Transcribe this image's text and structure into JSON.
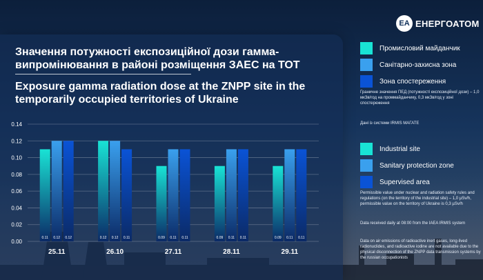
{
  "brand": {
    "badge": "EA",
    "name": "ЕНЕРГОАТОМ"
  },
  "titles": {
    "ua": "Значення потужності експозиційної дози гамма-випромінювання в районі розміщення ЗАЕС на ТОТ",
    "en": "Exposure gamma radiation dose at the ZNPP site in the temporarily occupied territories of Ukraine"
  },
  "legend_ua": [
    {
      "label": "Промисловий майданчик",
      "color": "#19e3d5"
    },
    {
      "label": "Санітарно-захисна зона",
      "color": "#3aa0ee"
    },
    {
      "label": "Зона спостереження",
      "color": "#0a53d6"
    }
  ],
  "legend_en": [
    {
      "label": "Industrial site",
      "color": "#19e3d5"
    },
    {
      "label": "Sanitary protection zone",
      "color": "#3aa0ee"
    },
    {
      "label": "Supervised area",
      "color": "#0a53d6"
    }
  ],
  "notes_ua": [
    "Граничне значення ПЕД (потужності експозиційної дози) – 1,0 мкЗв/год на проммайданчику, 0,3 мкЗв/год у зоні спостереження",
    "Дані із системи IRMIS МАГАТЕ"
  ],
  "notes_en": [
    "Permissible value under nuclear and radiation safety rules and regulations (on the territory of the industrial site) – 1,0 µSv/h, permissible value on the territory of Ukraine is 0,3 µSv/h",
    "Data received daily at 08:00 from the IAEA IRMIS system",
    "Data on air emissions of radioactive inert gases, long-lived radionuclides, and radioactive iodine are not available due to the physical disconnection of the ZNPP data transmission systems by the russian occupationists"
  ],
  "chart_data": {
    "type": "bar",
    "title": "Exposure gamma radiation dose at the ZNPP site in the temporarily occupied territories of Ukraine",
    "xlabel": "",
    "ylabel": "",
    "ylim": [
      0,
      0.14
    ],
    "yticks": [
      "0.00",
      "0.02",
      "0.04",
      "0.06",
      "0.08",
      "0.10",
      "0.12",
      "0.14"
    ],
    "grid": true,
    "categories": [
      "25.11",
      "26.10",
      "27.11",
      "28.11",
      "29.11"
    ],
    "series": [
      {
        "name": "Industrial site",
        "color": "#19e3d5",
        "values": [
          0.11,
          0.12,
          0.09,
          0.09,
          0.09
        ],
        "labels": [
          "0.11",
          "0.12",
          "0.09",
          "0.09",
          "0.09"
        ]
      },
      {
        "name": "Sanitary protection zone",
        "color": "#3aa0ee",
        "values": [
          0.12,
          0.12,
          0.11,
          0.11,
          0.11
        ],
        "labels": [
          "0.12",
          "0.12",
          "0.11",
          "0.11",
          "0.11"
        ]
      },
      {
        "name": "Supervised area",
        "color": "#0a53d6",
        "values": [
          0.12,
          0.11,
          0.11,
          0.11,
          0.11
        ],
        "labels": [
          "0.12",
          "0.11",
          "0.11",
          "0.11",
          "0.11"
        ]
      }
    ]
  }
}
